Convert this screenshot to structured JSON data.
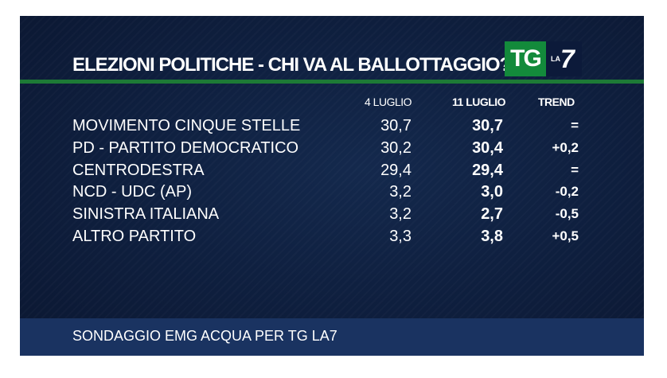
{
  "header": {
    "title": "ELEZIONI POLITICHE - CHI VA AL BALLOTTAGGIO?",
    "logo": {
      "tg": "TG",
      "la": "LA",
      "seven": "7"
    }
  },
  "colors": {
    "background": "#0f2040",
    "accent_green": "#1d7a36",
    "logo_green": "#138a3b",
    "footer_band": "#1a3361",
    "text": "#ffffff"
  },
  "chart_data": {
    "type": "table",
    "title": "ELEZIONI POLITICHE - CHI VA AL BALLOTTAGGIO?",
    "columns": [
      "4 LUGLIO",
      "11 LUGLIO",
      "TREND"
    ],
    "rows": [
      {
        "name": "MOVIMENTO CINQUE STELLE",
        "v1": "30,7",
        "v2": "30,7",
        "trend": "="
      },
      {
        "name": "PD - PARTITO DEMOCRATICO",
        "v1": "30,2",
        "v2": "30,4",
        "trend": "+0,2"
      },
      {
        "name": "CENTRODESTRA",
        "v1": "29,4",
        "v2": "29,4",
        "trend": "="
      },
      {
        "name": "NCD - UDC (AP)",
        "v1": "3,2",
        "v2": "3,0",
        "trend": "-0,2"
      },
      {
        "name": "SINISTRA ITALIANA",
        "v1": "3,2",
        "v2": "2,7",
        "trend": "-0,5"
      },
      {
        "name": "ALTRO PARTITO",
        "v1": "3,3",
        "v2": "3,8",
        "trend": "+0,5"
      }
    ]
  },
  "footer": {
    "text": "SONDAGGIO EMG ACQUA PER TG LA7"
  }
}
